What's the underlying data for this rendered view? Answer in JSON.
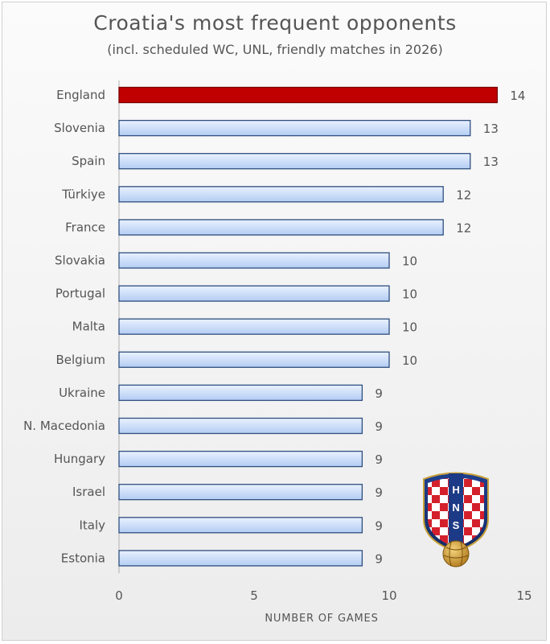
{
  "title": "Croatia's most frequent opponents",
  "subtitle": "(incl. scheduled WC, UNL, friendly matches in 2026)",
  "chart_data": {
    "type": "bar",
    "orientation": "horizontal",
    "categories": [
      "England",
      "Slovenia",
      "Spain",
      "Türkiye",
      "France",
      "Slovakia",
      "Portugal",
      "Malta",
      "Belgium",
      "Ukraine",
      "N. Macedonia",
      "Hungary",
      "Israel",
      "Italy",
      "Estonia"
    ],
    "values": [
      14,
      13,
      13,
      12,
      12,
      10,
      10,
      10,
      10,
      9,
      9,
      9,
      9,
      9,
      9
    ],
    "highlight": "England",
    "xlabel": "NUMBER OF GAMES",
    "xlim": [
      0,
      15
    ],
    "xticks": [
      0,
      5,
      10,
      15
    ],
    "colors": {
      "highlight_fill": "#c00000",
      "highlight_stroke": "#7a0000",
      "bar_fill_top": "#e9f1ff",
      "bar_fill_bottom": "#b3cdf3",
      "bar_stroke": "#2f4f7f"
    }
  },
  "logo": {
    "text": "HNS"
  }
}
